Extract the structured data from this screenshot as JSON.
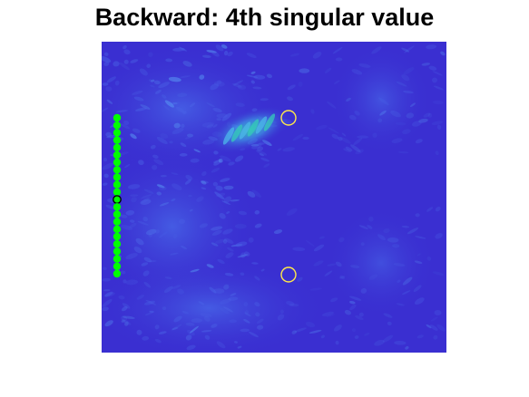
{
  "figure": {
    "title": "Backward: 4th singular value"
  },
  "colors": {
    "background_field": "#3a2fd1",
    "mid_intensity": "#3f7cf0",
    "high_intensity": "#33d2b4",
    "sensor_marker": "#00ff00",
    "selected_sensor_outline": "#000000",
    "target_circle": "#ffe94a"
  },
  "image": {
    "sensor_count": 22,
    "highlighted_sensor_index": 11,
    "target_circles": 2
  }
}
